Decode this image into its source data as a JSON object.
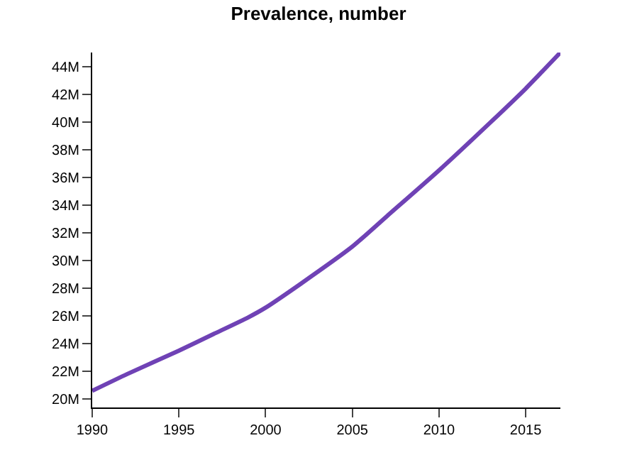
{
  "chart_data": {
    "type": "line",
    "title": "Prevalence, number",
    "x": [
      1990,
      1992,
      1995,
      1997,
      1999,
      2000,
      2002,
      2005,
      2007,
      2010,
      2013,
      2015,
      2017
    ],
    "series": [
      {
        "color": "#6f42b5",
        "values": [
          20600000,
          21800000,
          23500000,
          24700000,
          25900000,
          26600000,
          28300000,
          31000000,
          33200000,
          36500000,
          40000000,
          42400000,
          45000000
        ]
      }
    ],
    "xlim": [
      1990,
      2017
    ],
    "xticks": [
      1990,
      1995,
      2000,
      2005,
      2010,
      2015
    ],
    "ylim": [
      19400000,
      45000000
    ],
    "yticks": [
      {
        "value": 20000000,
        "label": "20M"
      },
      {
        "value": 22000000,
        "label": "22M"
      },
      {
        "value": 24000000,
        "label": "24M"
      },
      {
        "value": 26000000,
        "label": "26M"
      },
      {
        "value": 28000000,
        "label": "28M"
      },
      {
        "value": 30000000,
        "label": "30M"
      },
      {
        "value": 32000000,
        "label": "32M"
      },
      {
        "value": 34000000,
        "label": "34M"
      },
      {
        "value": 36000000,
        "label": "36M"
      },
      {
        "value": 38000000,
        "label": "38M"
      },
      {
        "value": 40000000,
        "label": "40M"
      },
      {
        "value": 42000000,
        "label": "42M"
      },
      {
        "value": 44000000,
        "label": "44M"
      }
    ],
    "marker": "none",
    "line_style": "solid"
  }
}
